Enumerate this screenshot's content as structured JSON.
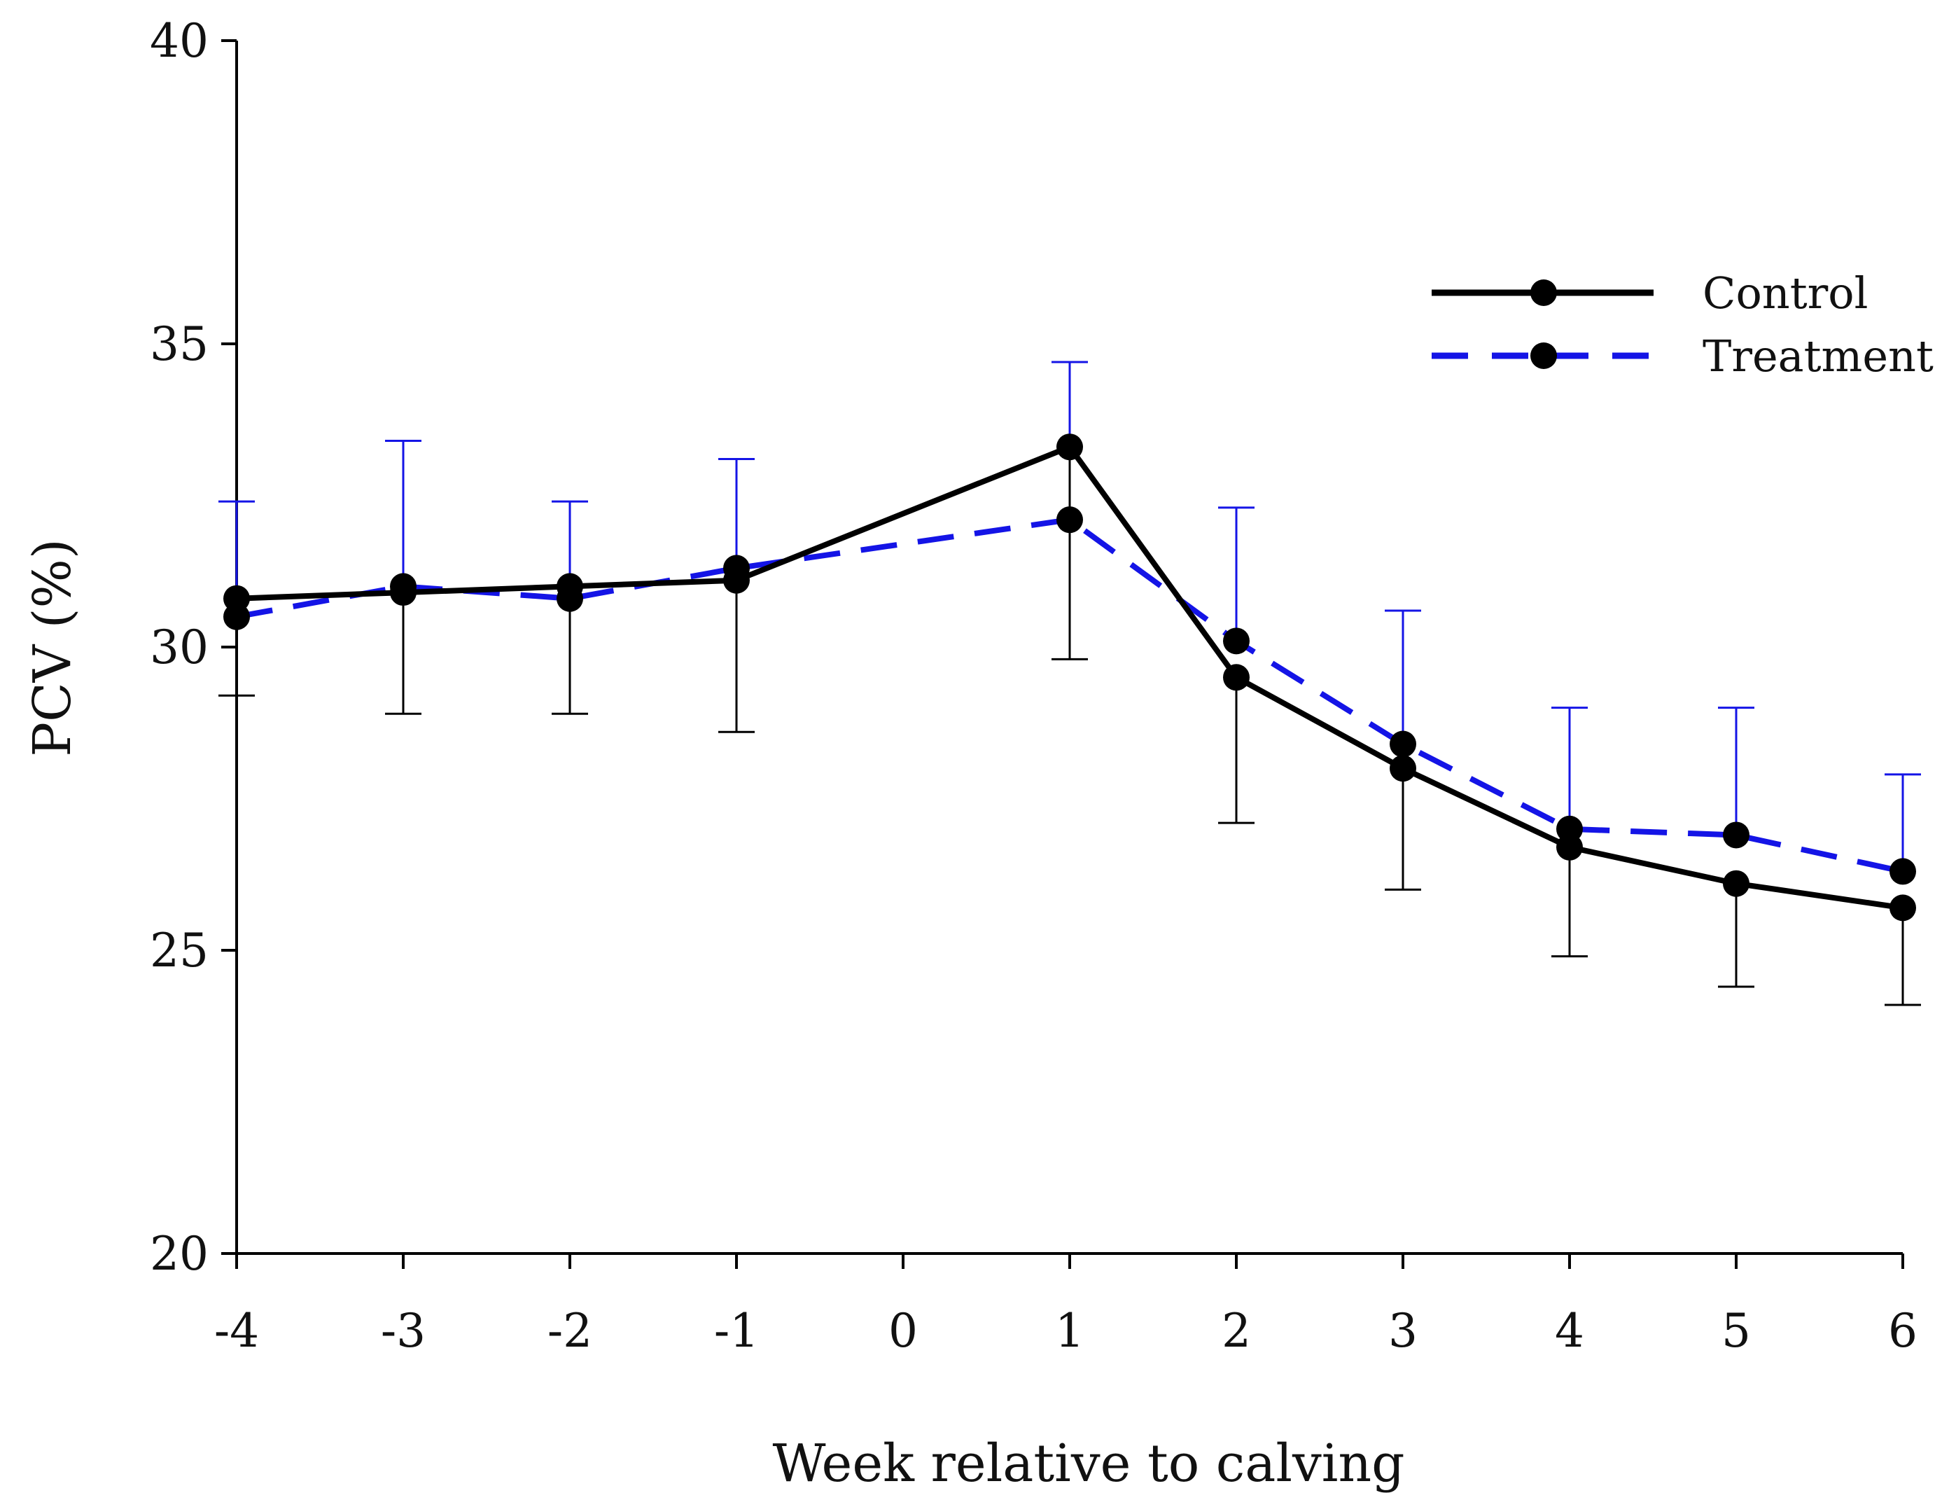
{
  "chart_data": {
    "type": "line",
    "title": "",
    "xlabel": "Week relative to calving",
    "ylabel": "PCV (%)",
    "xlim": [
      -4,
      6
    ],
    "ylim": [
      20,
      40
    ],
    "x_ticks": [
      -4,
      -3,
      -2,
      -1,
      0,
      1,
      2,
      3,
      4,
      5,
      6
    ],
    "x_tick_labels": [
      "-4",
      "-3",
      "-2",
      "-1",
      "0",
      "1",
      "2",
      "3",
      "4",
      "5",
      "6"
    ],
    "y_ticks": [
      20,
      25,
      30,
      35,
      40
    ],
    "y_tick_labels": [
      "20",
      "25",
      "30",
      "35",
      "40"
    ],
    "grid": false,
    "legend_position": "top-right",
    "series": [
      {
        "name": "Treatment",
        "color": "#1414e6",
        "line_style": "dashed",
        "x": [
          -4,
          -3,
          -2,
          -1,
          1,
          2,
          3,
          4,
          5,
          6
        ],
        "values": [
          30.5,
          31.0,
          30.8,
          31.3,
          32.1,
          30.1,
          28.4,
          27.0,
          26.9,
          26.3
        ],
        "error_upper": [
          32.4,
          33.4,
          32.4,
          33.1,
          34.7,
          32.3,
          30.6,
          29.0,
          29.0,
          27.9
        ]
      },
      {
        "name": "Control",
        "color": "#000000",
        "line_style": "solid",
        "x": [
          -4,
          -3,
          -2,
          -1,
          1,
          2,
          3,
          4,
          5,
          6
        ],
        "values": [
          30.8,
          30.9,
          31.0,
          31.1,
          33.3,
          29.5,
          28.0,
          26.7,
          26.1,
          25.7
        ],
        "error_lower": [
          29.2,
          28.9,
          28.9,
          28.6,
          29.8,
          27.1,
          26.0,
          24.9,
          24.4,
          24.1
        ]
      }
    ]
  }
}
